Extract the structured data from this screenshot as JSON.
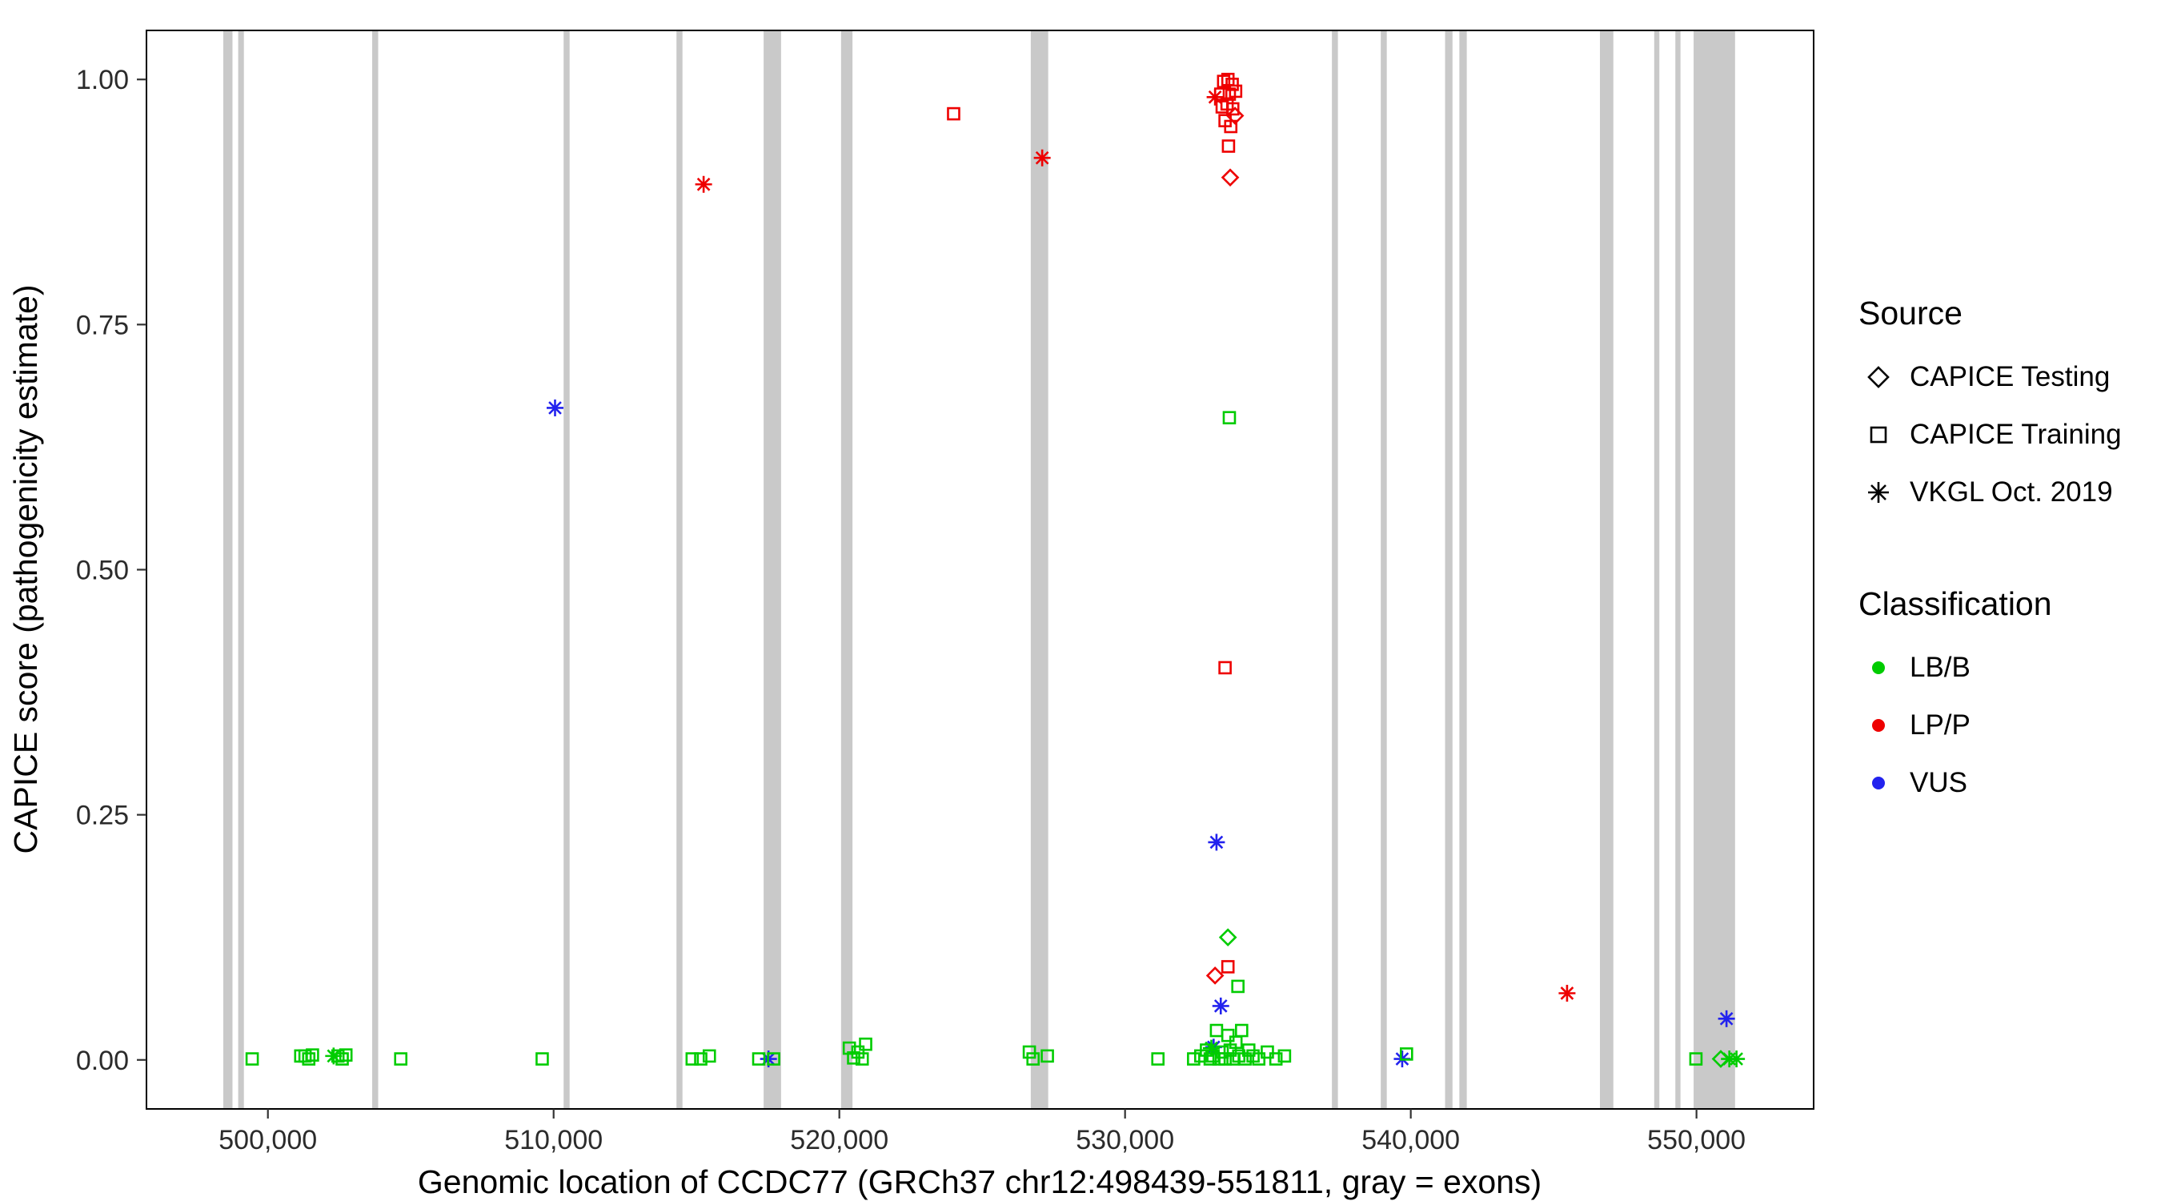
{
  "chart_data": {
    "type": "scatter",
    "title": "",
    "xlabel": "Genomic location of CCDC77 (GRCh37 chr12:498439-551811, gray = exons)",
    "ylabel": "CAPICE score (pathogenicity estimate)",
    "xlim": [
      495750,
      554100
    ],
    "ylim": [
      -0.05,
      1.05
    ],
    "x_ticks": [
      500000,
      510000,
      520000,
      530000,
      540000,
      550000
    ],
    "x_tick_labels": [
      "500,000",
      "510,000",
      "520,000",
      "530,000",
      "540,000",
      "550,000"
    ],
    "y_ticks": [
      0,
      0.25,
      0.5,
      0.75,
      1
    ],
    "y_tick_labels": [
      "0.00",
      "0.25",
      "0.50",
      "0.75",
      "1.00"
    ],
    "grid": "off",
    "legend_position": "right",
    "exon_color": "#C9C9C9",
    "exons": [
      [
        498439,
        498760
      ],
      [
        498960,
        499160
      ],
      [
        503650,
        503860
      ],
      [
        510350,
        510560
      ],
      [
        514300,
        514510
      ],
      [
        517350,
        517960
      ],
      [
        520060,
        520460
      ],
      [
        526700,
        527310
      ],
      [
        537240,
        537450
      ],
      [
        538950,
        539160
      ],
      [
        541200,
        541460
      ],
      [
        541700,
        541960
      ],
      [
        546620,
        547090
      ],
      [
        548520,
        548700
      ],
      [
        549260,
        549440
      ],
      [
        549900,
        551350
      ]
    ],
    "classification_colors": {
      "LB/B": "#00CC00",
      "LP/P": "#EE0000",
      "VUS": "#2222EE"
    },
    "source_shapes": {
      "CAPICE Testing": "diamond",
      "CAPICE Training": "square",
      "VKGL Oct. 2019": "asterisk"
    },
    "series": [
      {
        "source": "CAPICE Training",
        "classification": "LP/P",
        "shape": "square",
        "points": [
          [
            524000,
            0.965
          ],
          [
            533450,
            0.998
          ],
          [
            533600,
            1.0
          ],
          [
            533750,
            0.995
          ],
          [
            533350,
            0.985
          ],
          [
            533650,
            0.985
          ],
          [
            533870,
            0.988
          ],
          [
            533400,
            0.972
          ],
          [
            533570,
            0.975
          ],
          [
            533770,
            0.97
          ],
          [
            533500,
            0.958
          ],
          [
            533700,
            0.952
          ],
          [
            533620,
            0.932
          ],
          [
            533500,
            0.4
          ],
          [
            533600,
            0.095
          ]
        ]
      },
      {
        "source": "CAPICE Testing",
        "classification": "LP/P",
        "shape": "diamond",
        "points": [
          [
            533850,
            0.963
          ],
          [
            533680,
            0.9
          ],
          [
            533150,
            0.086
          ]
        ]
      },
      {
        "source": "VKGL Oct. 2019",
        "classification": "LP/P",
        "shape": "asterisk",
        "points": [
          [
            515250,
            0.893
          ],
          [
            527100,
            0.92
          ],
          [
            533150,
            0.982
          ],
          [
            545470,
            0.068
          ]
        ]
      },
      {
        "source": "VKGL Oct. 2019",
        "classification": "VUS",
        "shape": "asterisk",
        "points": [
          [
            510050,
            0.665
          ],
          [
            533200,
            0.222
          ],
          [
            533350,
            0.055
          ],
          [
            533100,
            0.013
          ],
          [
            517520,
            0.001
          ],
          [
            539700,
            0.001
          ],
          [
            551050,
            0.042
          ]
        ]
      },
      {
        "source": "CAPICE Training",
        "classification": "LB/B",
        "shape": "square",
        "points": [
          [
            499450,
            0.001
          ],
          [
            501150,
            0.004
          ],
          [
            501300,
            0.004
          ],
          [
            501430,
            0.001
          ],
          [
            501560,
            0.005
          ],
          [
            502450,
            0.004
          ],
          [
            502600,
            0.001
          ],
          [
            502730,
            0.005
          ],
          [
            504650,
            0.001
          ],
          [
            509600,
            0.001
          ],
          [
            514850,
            0.001
          ],
          [
            515150,
            0.001
          ],
          [
            515450,
            0.004
          ],
          [
            517180,
            0.001
          ],
          [
            517700,
            0.001
          ],
          [
            520350,
            0.012
          ],
          [
            520500,
            0.002
          ],
          [
            520650,
            0.008
          ],
          [
            520800,
            0.001
          ],
          [
            520920,
            0.016
          ],
          [
            526650,
            0.008
          ],
          [
            526780,
            0.001
          ],
          [
            527280,
            0.004
          ],
          [
            531150,
            0.001
          ],
          [
            532400,
            0.001
          ],
          [
            532650,
            0.004
          ],
          [
            532850,
            0.01
          ],
          [
            532980,
            0.001
          ],
          [
            533080,
            0.004
          ],
          [
            533200,
            0.03
          ],
          [
            533290,
            0.001
          ],
          [
            533400,
            0.008
          ],
          [
            533500,
            0.001
          ],
          [
            533600,
            0.025
          ],
          [
            533680,
            0.01
          ],
          [
            533780,
            0.001
          ],
          [
            533880,
            0.018
          ],
          [
            533980,
            0.004
          ],
          [
            534080,
            0.03
          ],
          [
            534200,
            0.001
          ],
          [
            534330,
            0.01
          ],
          [
            534480,
            0.004
          ],
          [
            534680,
            0.001
          ],
          [
            534980,
            0.008
          ],
          [
            535280,
            0.001
          ],
          [
            535580,
            0.004
          ],
          [
            539850,
            0.006
          ],
          [
            549980,
            0.001
          ],
          [
            533650,
            0.655
          ],
          [
            533950,
            0.075
          ]
        ]
      },
      {
        "source": "CAPICE Testing",
        "classification": "LB/B",
        "shape": "diamond",
        "points": [
          [
            533600,
            0.125
          ],
          [
            550850,
            0.001
          ]
        ]
      },
      {
        "source": "VKGL Oct. 2019",
        "classification": "LB/B",
        "shape": "asterisk",
        "points": [
          [
            502300,
            0.004
          ],
          [
            533020,
            0.012
          ],
          [
            551150,
            0.001
          ],
          [
            551400,
            0.001
          ]
        ]
      }
    ]
  },
  "legend": {
    "source": {
      "title": "Source",
      "items": [
        {
          "label": "CAPICE Testing",
          "shape": "diamond"
        },
        {
          "label": "CAPICE Training",
          "shape": "square"
        },
        {
          "label": "VKGL Oct. 2019",
          "shape": "asterisk"
        }
      ]
    },
    "classification": {
      "title": "Classification",
      "items": [
        {
          "label": "LB/B",
          "color": "#00CC00"
        },
        {
          "label": "LP/P",
          "color": "#EE0000"
        },
        {
          "label": "VUS",
          "color": "#2222EE"
        }
      ]
    }
  }
}
